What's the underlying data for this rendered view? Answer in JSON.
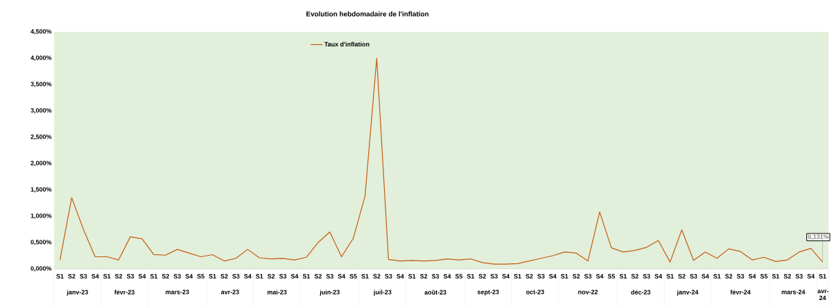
{
  "chart_data": {
    "type": "line",
    "title": "Evolution hebdomadaire de l'inflation",
    "categories": [
      "S1",
      "S2",
      "S3",
      "S4",
      "S1",
      "S2",
      "S3",
      "S4",
      "S1",
      "S2",
      "S3",
      "S4",
      "S5",
      "S1",
      "S2",
      "S3",
      "S4",
      "S1",
      "S2",
      "S3",
      "S4",
      "S1",
      "S2",
      "S3",
      "S4",
      "S5",
      "S1",
      "S2",
      "S3",
      "S4",
      "S1",
      "S2",
      "S3",
      "S4",
      "S5",
      "S1",
      "S2",
      "S3",
      "S4",
      "S1",
      "S2",
      "S3",
      "S4",
      "S1",
      "S2",
      "S3",
      "S4",
      "S5",
      "S1",
      "S2",
      "S3",
      "S4",
      "S1",
      "S2",
      "S3",
      "S4",
      "S1",
      "S2",
      "S3",
      "S4",
      "S5",
      "S1",
      "S2",
      "S3",
      "S4",
      "S1"
    ],
    "annotations": [
      "janv-23",
      "févr-23",
      "mars-23",
      "avr-23",
      "mai-23",
      "juin-23",
      "juil-23",
      "août-23",
      "sept-23",
      "oct-23",
      "nov-22",
      "déc-23",
      "janv-24",
      "févr-24",
      "mars-24",
      "avr-24"
    ],
    "series": [
      {
        "name": "Taux d'inflation",
        "color": "#c55a11",
        "values": [
          0.17,
          1.35,
          0.75,
          0.23,
          0.23,
          0.17,
          0.61,
          0.57,
          0.27,
          0.26,
          0.37,
          0.3,
          0.23,
          0.27,
          0.15,
          0.2,
          0.37,
          0.21,
          0.19,
          0.2,
          0.17,
          0.22,
          0.5,
          0.7,
          0.23,
          0.58,
          1.38,
          4.0,
          0.18,
          0.15,
          0.16,
          0.15,
          0.16,
          0.19,
          0.17,
          0.19,
          0.12,
          0.09,
          0.09,
          0.1,
          0.15,
          0.2,
          0.25,
          0.32,
          0.3,
          0.15,
          1.08,
          0.4,
          0.32,
          0.35,
          0.41,
          0.54,
          0.13,
          0.74,
          0.16,
          0.32,
          0.2,
          0.38,
          0.33,
          0.17,
          0.22,
          0.14,
          0.17,
          0.32,
          0.39,
          0.131
        ],
        "value_labels": [
          null,
          null,
          null,
          null,
          null,
          null,
          null,
          null,
          null,
          null,
          null,
          null,
          null,
          null,
          null,
          null,
          null,
          null,
          null,
          null,
          null,
          null,
          null,
          null,
          null,
          null,
          null,
          null,
          null,
          null,
          null,
          null,
          null,
          null,
          null,
          null,
          null,
          null,
          null,
          null,
          null,
          null,
          null,
          null,
          null,
          null,
          null,
          null,
          null,
          null,
          null,
          null,
          null,
          null,
          null,
          null,
          null,
          null,
          null,
          null,
          null,
          null,
          null,
          null,
          null,
          "0,131%"
        ]
      }
    ],
    "ylim": [
      0,
      4.5
    ],
    "yticks": [
      {
        "value": 0,
        "label": "0,000%"
      },
      {
        "value": 0.5,
        "label": "0,500%"
      },
      {
        "value": 1,
        "label": "1,000%"
      },
      {
        "value": 1.5,
        "label": "1,500%"
      },
      {
        "value": 2,
        "label": "2,000%"
      },
      {
        "value": 2.5,
        "label": "2,500%"
      },
      {
        "value": 3,
        "label": "3,000%"
      },
      {
        "value": 3.5,
        "label": "3,500%"
      },
      {
        "value": 4,
        "label": "4,000%"
      },
      {
        "value": 4.5,
        "label": "4,500%"
      }
    ],
    "legend": "top",
    "grid": false,
    "marker": "none",
    "line_style": "solid"
  }
}
